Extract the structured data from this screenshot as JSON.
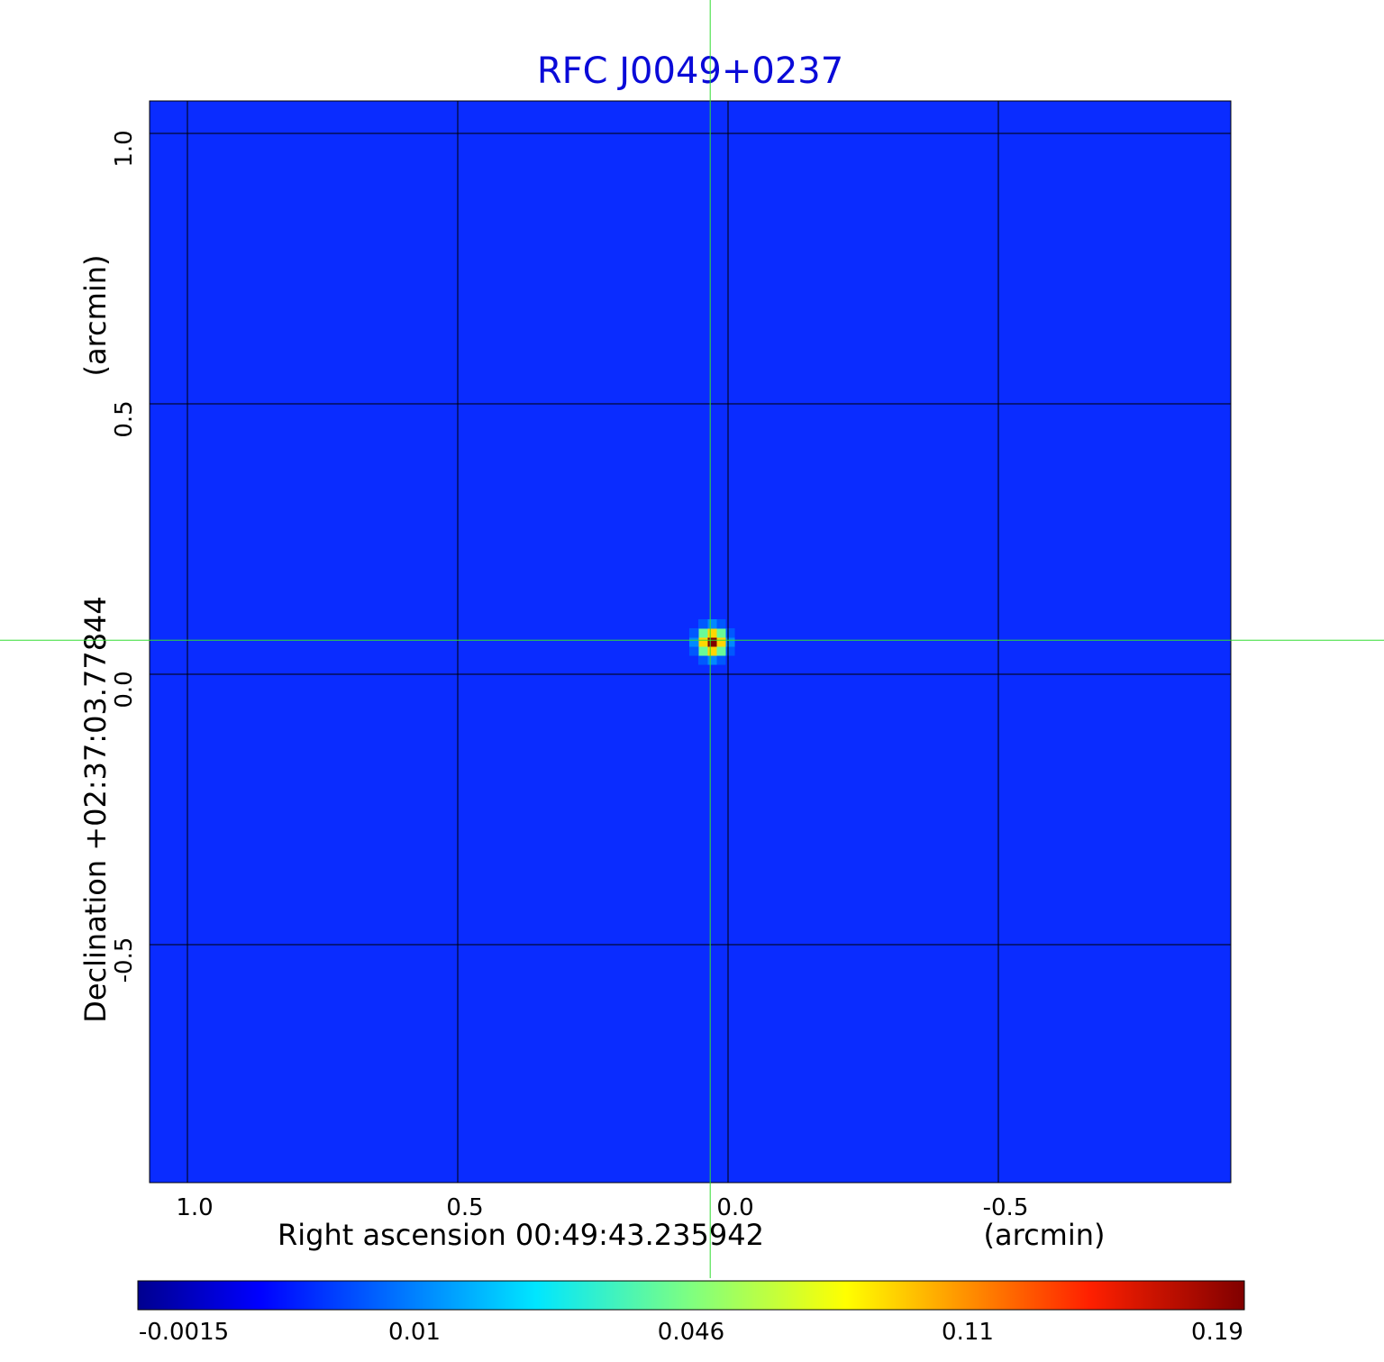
{
  "chart_data": {
    "type": "heatmap",
    "title": "RFC J0049+0237",
    "xlabel": "Right ascension  00:49:43.235942",
    "xunit": "(arcmin)",
    "ylabel": "Declination  +02:37:03.77844",
    "yunit": "(arcmin)",
    "xlim": [
      1.07,
      -0.93
    ],
    "ylim": [
      -0.94,
      1.06
    ],
    "x_ticks": [
      {
        "value": 1.0,
        "label": "1.0"
      },
      {
        "value": 0.5,
        "label": "0.5"
      },
      {
        "value": 0.0,
        "label": "0.0"
      },
      {
        "value": -0.5,
        "label": "-0.5"
      }
    ],
    "y_ticks": [
      {
        "value": 1.0,
        "label": "1.0"
      },
      {
        "value": 0.5,
        "label": "0.5"
      },
      {
        "value": 0.0,
        "label": "0.0"
      },
      {
        "value": -0.5,
        "label": "-0.5"
      }
    ],
    "grid": true,
    "source": {
      "x": 0.03,
      "y": 0.06,
      "peak": 0.19,
      "width_arcmin": 0.025
    },
    "crosshair": {
      "x": 0.033,
      "y": 0.063,
      "color": "#33dd33"
    },
    "colorbar": {
      "colormap": "jet",
      "scale": "nonlinear",
      "ticks": [
        {
          "value": -0.0015,
          "label": "-0.0015"
        },
        {
          "value": 0.01,
          "label": "0.01"
        },
        {
          "value": 0.046,
          "label": "0.046"
        },
        {
          "value": 0.11,
          "label": "0.11"
        },
        {
          "value": 0.19,
          "label": "0.19"
        }
      ]
    },
    "background_color": "#0a2cff",
    "title_color": "#0a0ad8"
  }
}
